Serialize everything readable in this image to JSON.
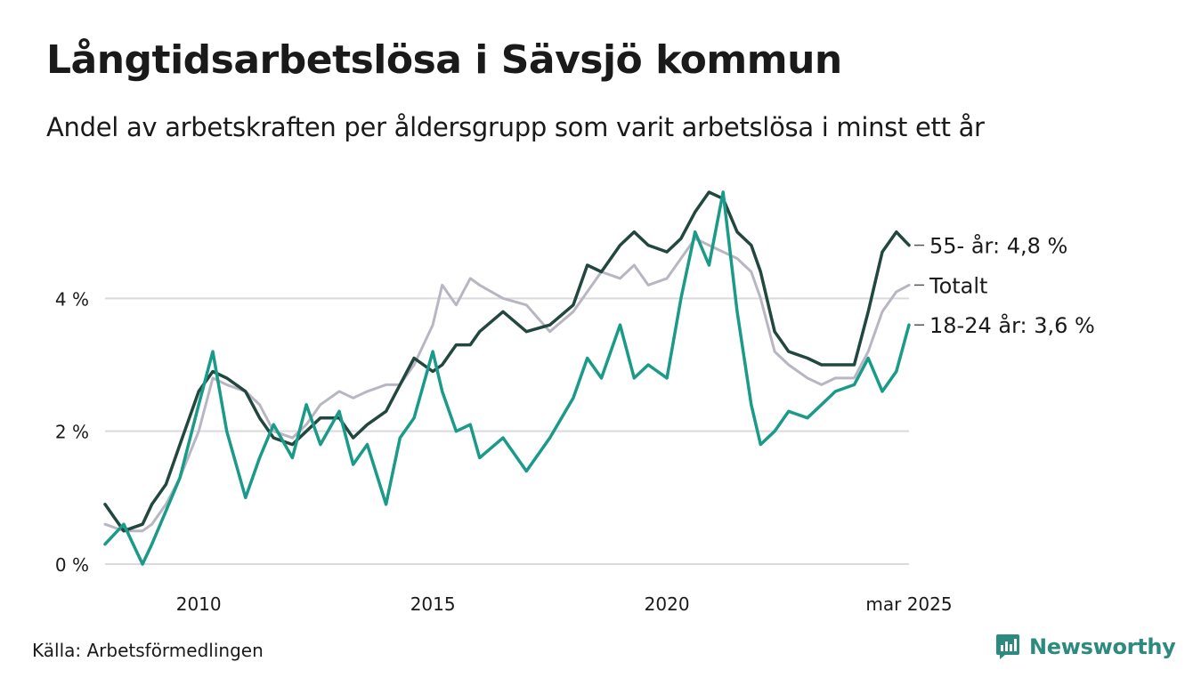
{
  "title": "Långtidsarbetslösa i Sävsjö kommun",
  "subtitle": "Andel av arbetskraften per åldersgrupp som varit arbetslösa i minst ett år",
  "source": "Källa: Arbetsförmedlingen",
  "brand": {
    "name": "Newsworthy",
    "icon": "newsworthy-logo-icon",
    "color": "#2d8a7e"
  },
  "chart_data": {
    "type": "line",
    "x_unit": "year",
    "xlim": [
      2008.0,
      2025.17
    ],
    "ylim": [
      0,
      6
    ],
    "grid": true,
    "x_ticks": [
      {
        "value": 2010,
        "label": "2010"
      },
      {
        "value": 2015,
        "label": "2015"
      },
      {
        "value": 2020,
        "label": "2020"
      },
      {
        "value": 2025.17,
        "label": "mar 2025"
      }
    ],
    "y_ticks": [
      {
        "value": 0,
        "label": "0 %"
      },
      {
        "value": 2,
        "label": "2 %"
      },
      {
        "value": 4,
        "label": "4 %"
      }
    ],
    "series": [
      {
        "name": "Totalt",
        "label": "Totalt",
        "color": "#b9b6c3",
        "x": [
          2008.0,
          2008.4,
          2008.8,
          2009.0,
          2009.3,
          2009.6,
          2010.0,
          2010.3,
          2010.6,
          2011.0,
          2011.3,
          2011.6,
          2012.0,
          2012.3,
          2012.6,
          2013.0,
          2013.3,
          2013.6,
          2014.0,
          2014.3,
          2014.6,
          2015.0,
          2015.2,
          2015.5,
          2015.8,
          2016.0,
          2016.5,
          2017.0,
          2017.5,
          2018.0,
          2018.3,
          2018.6,
          2019.0,
          2019.3,
          2019.6,
          2020.0,
          2020.3,
          2020.6,
          2020.9,
          2021.2,
          2021.5,
          2021.8,
          2022.0,
          2022.3,
          2022.6,
          2023.0,
          2023.3,
          2023.6,
          2024.0,
          2024.3,
          2024.6,
          2024.9,
          2025.17
        ],
        "values": [
          0.6,
          0.5,
          0.5,
          0.6,
          0.9,
          1.3,
          2.0,
          2.8,
          2.7,
          2.6,
          2.4,
          2.0,
          1.9,
          2.1,
          2.4,
          2.6,
          2.5,
          2.6,
          2.7,
          2.7,
          3.0,
          3.6,
          4.2,
          3.9,
          4.3,
          4.2,
          4.0,
          3.9,
          3.5,
          3.8,
          4.1,
          4.4,
          4.3,
          4.5,
          4.2,
          4.3,
          4.6,
          4.9,
          4.8,
          4.7,
          4.6,
          4.4,
          4.0,
          3.2,
          3.0,
          2.8,
          2.7,
          2.8,
          2.8,
          3.2,
          3.8,
          4.1,
          4.2
        ]
      },
      {
        "name": "55- år",
        "label": "55- år: 4,8 %",
        "color": "#22473f",
        "x": [
          2008.0,
          2008.4,
          2008.8,
          2009.0,
          2009.3,
          2009.6,
          2010.0,
          2010.3,
          2010.6,
          2011.0,
          2011.3,
          2011.6,
          2012.0,
          2012.3,
          2012.6,
          2013.0,
          2013.3,
          2013.6,
          2014.0,
          2014.3,
          2014.6,
          2015.0,
          2015.2,
          2015.5,
          2015.8,
          2016.0,
          2016.5,
          2017.0,
          2017.5,
          2018.0,
          2018.3,
          2018.6,
          2019.0,
          2019.3,
          2019.6,
          2020.0,
          2020.3,
          2020.6,
          2020.9,
          2021.2,
          2021.5,
          2021.8,
          2022.0,
          2022.3,
          2022.6,
          2023.0,
          2023.3,
          2023.6,
          2024.0,
          2024.3,
          2024.6,
          2024.9,
          2025.17
        ],
        "values": [
          0.9,
          0.5,
          0.6,
          0.9,
          1.2,
          1.8,
          2.6,
          2.9,
          2.8,
          2.6,
          2.2,
          1.9,
          1.8,
          2.0,
          2.2,
          2.2,
          1.9,
          2.1,
          2.3,
          2.7,
          3.1,
          2.9,
          3.0,
          3.3,
          3.3,
          3.5,
          3.8,
          3.5,
          3.6,
          3.9,
          4.5,
          4.4,
          4.8,
          5.0,
          4.8,
          4.7,
          4.9,
          5.3,
          5.6,
          5.5,
          5.0,
          4.8,
          4.4,
          3.5,
          3.2,
          3.1,
          3.0,
          3.0,
          3.0,
          3.8,
          4.7,
          5.0,
          4.8
        ]
      },
      {
        "name": "18-24 år",
        "label": "18-24 år: 3,6 %",
        "color": "#1a9a88",
        "x": [
          2008.0,
          2008.4,
          2008.8,
          2009.0,
          2009.3,
          2009.6,
          2010.0,
          2010.3,
          2010.6,
          2011.0,
          2011.3,
          2011.6,
          2012.0,
          2012.3,
          2012.6,
          2013.0,
          2013.3,
          2013.6,
          2014.0,
          2014.3,
          2014.6,
          2015.0,
          2015.2,
          2015.5,
          2015.8,
          2016.0,
          2016.5,
          2017.0,
          2017.5,
          2018.0,
          2018.3,
          2018.6,
          2019.0,
          2019.3,
          2019.6,
          2020.0,
          2020.3,
          2020.6,
          2020.9,
          2021.2,
          2021.5,
          2021.8,
          2022.0,
          2022.3,
          2022.6,
          2023.0,
          2023.3,
          2023.6,
          2024.0,
          2024.3,
          2024.6,
          2024.9,
          2025.17
        ],
        "values": [
          0.3,
          0.6,
          0.0,
          0.3,
          0.8,
          1.3,
          2.4,
          3.2,
          2.0,
          1.0,
          1.6,
          2.1,
          1.6,
          2.4,
          1.8,
          2.3,
          1.5,
          1.8,
          0.9,
          1.9,
          2.2,
          3.2,
          2.6,
          2.0,
          2.1,
          1.6,
          1.9,
          1.4,
          1.9,
          2.5,
          3.1,
          2.8,
          3.6,
          2.8,
          3.0,
          2.8,
          4.0,
          5.0,
          4.5,
          5.6,
          3.8,
          2.4,
          1.8,
          2.0,
          2.3,
          2.2,
          2.4,
          2.6,
          2.7,
          3.1,
          2.6,
          2.9,
          3.6
        ]
      }
    ]
  }
}
